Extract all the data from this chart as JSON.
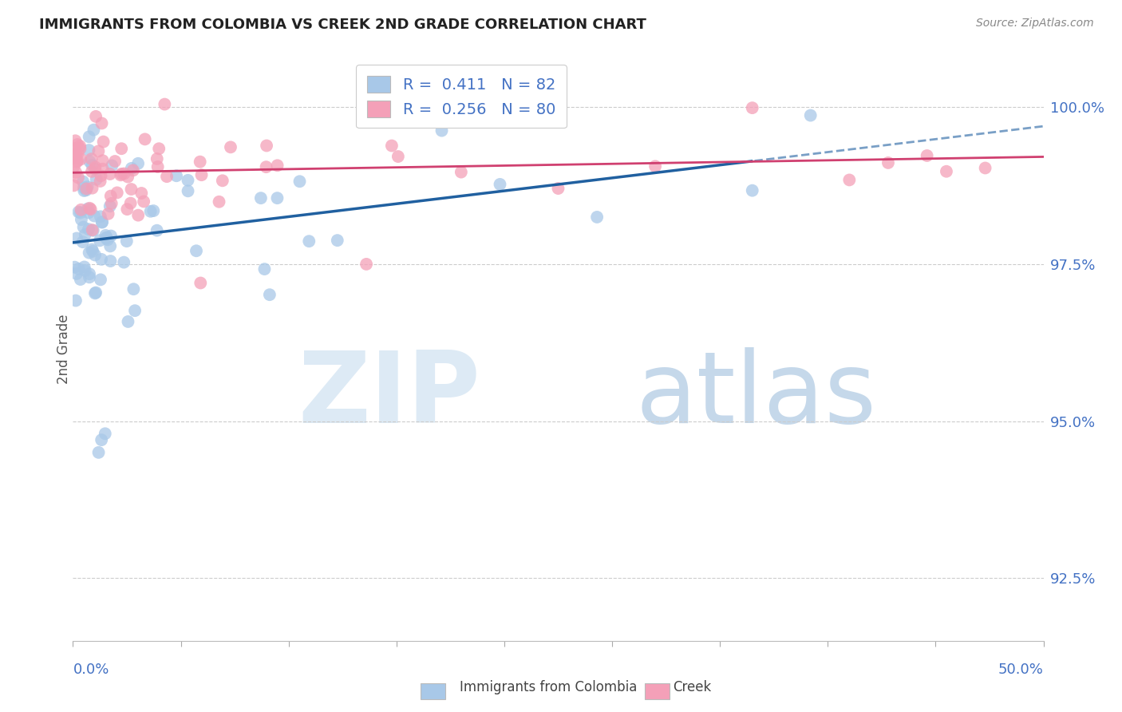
{
  "title": "IMMIGRANTS FROM COLOMBIA VS CREEK 2ND GRADE CORRELATION CHART",
  "source": "Source: ZipAtlas.com",
  "ylabel": "2nd Grade",
  "ytick_values": [
    92.5,
    95.0,
    97.5,
    100.0
  ],
  "xmin": 0.0,
  "xmax": 50.0,
  "ymin": 91.5,
  "ymax": 100.8,
  "legend_r1": "R =  0.411   N = 82",
  "legend_r2": "R =  0.256   N = 80",
  "color_blue": "#a8c8e8",
  "color_pink": "#f4a0b8",
  "color_blue_line": "#2060a0",
  "color_pink_line": "#d04070",
  "color_ytick": "#4472C4",
  "color_xtick": "#000000",
  "color_grid": "#cccccc",
  "color_title": "#222222",
  "color_source": "#888888",
  "watermark_zip_color": "#ddeaf5",
  "watermark_atlas_color": "#c5d8ea",
  "background": "#ffffff"
}
